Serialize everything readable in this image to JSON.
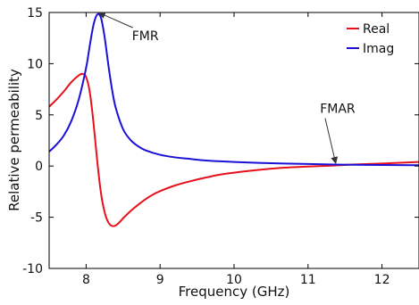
{
  "chart_data": {
    "type": "line",
    "title": "",
    "xlabel": "Frequency (GHz)",
    "ylabel": "Relative permeability",
    "xlim": [
      7.5,
      12.5
    ],
    "ylim": [
      -10,
      15
    ],
    "xticks": [
      8,
      9,
      10,
      11,
      12
    ],
    "yticks": [
      -10,
      -5,
      0,
      5,
      10,
      15
    ],
    "grid": false,
    "legend_position": "top-right",
    "series": [
      {
        "name": "Real",
        "color": "#e8101a",
        "x": [
          7.5,
          7.6,
          7.7,
          7.8,
          7.9,
          7.95,
          8.0,
          8.05,
          8.1,
          8.15,
          8.2,
          8.25,
          8.3,
          8.35,
          8.4,
          8.45,
          8.5,
          8.6,
          8.7,
          8.8,
          8.9,
          9.0,
          9.2,
          9.4,
          9.6,
          9.8,
          10.0,
          10.3,
          10.6,
          11.0,
          11.35,
          11.6,
          12.0,
          12.5
        ],
        "y": [
          5.8,
          6.5,
          7.3,
          8.2,
          8.85,
          9.0,
          8.7,
          7.2,
          4.2,
          0.5,
          -2.6,
          -4.5,
          -5.5,
          -5.85,
          -5.8,
          -5.5,
          -5.1,
          -4.4,
          -3.8,
          -3.25,
          -2.8,
          -2.45,
          -1.9,
          -1.5,
          -1.15,
          -0.85,
          -0.65,
          -0.4,
          -0.2,
          -0.05,
          0.05,
          0.15,
          0.25,
          0.4
        ]
      },
      {
        "name": "Imag",
        "color": "#1a10d8",
        "x": [
          7.5,
          7.6,
          7.7,
          7.8,
          7.9,
          8.0,
          8.05,
          8.1,
          8.15,
          8.2,
          8.25,
          8.3,
          8.35,
          8.4,
          8.5,
          8.6,
          8.7,
          8.8,
          9.0,
          9.2,
          9.4,
          9.6,
          10.0,
          10.5,
          11.0,
          11.35,
          11.6,
          12.0,
          12.5
        ],
        "y": [
          1.4,
          2.1,
          3.0,
          4.4,
          6.5,
          9.6,
          11.8,
          13.8,
          14.8,
          14.5,
          12.6,
          9.9,
          7.5,
          5.7,
          3.6,
          2.55,
          1.95,
          1.55,
          1.1,
          0.85,
          0.7,
          0.55,
          0.4,
          0.28,
          0.2,
          0.15,
          0.13,
          0.1,
          0.08
        ]
      }
    ],
    "annotations": [
      {
        "text": "FMR",
        "target_x": 8.15,
        "target_y": 14.8,
        "text_x": 8.8,
        "text_y": 12.3
      },
      {
        "text": "FMAR",
        "target_x": 11.35,
        "target_y": 0.1,
        "text_x": 11.4,
        "text_y": 5.2
      }
    ]
  }
}
